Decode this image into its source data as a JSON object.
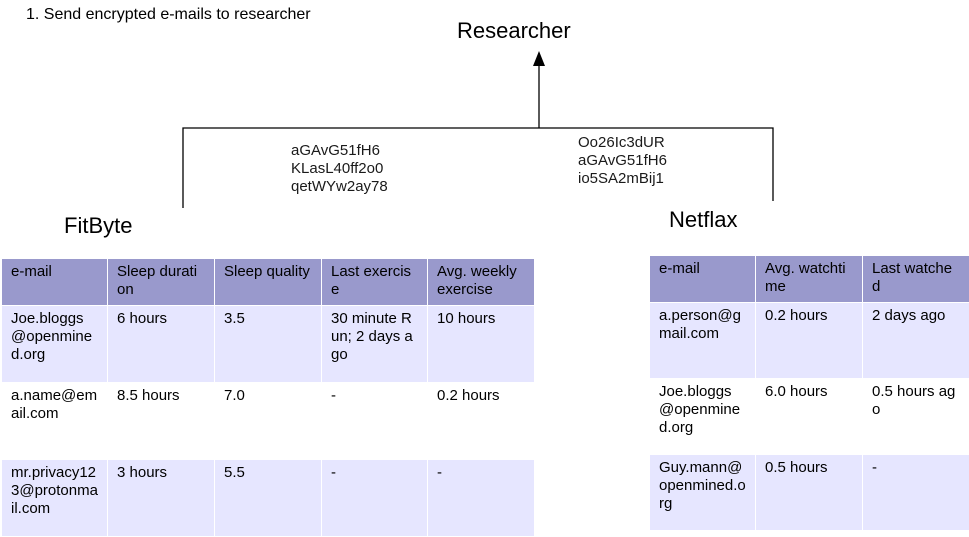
{
  "instruction": "1.  Send encrypted e-mails to researcher",
  "researcher": "Researcher",
  "fitbyte": {
    "title": "FitByte",
    "codes": [
      "aGAvG51fH6",
      "KLasL40ff2o0",
      "qetWYw2ay78"
    ],
    "headers": [
      "e-mail",
      "Sleep duration",
      "Sleep quality",
      "Last exercise",
      "Avg. weekly exercise"
    ],
    "rows": [
      [
        "Joe.bloggs@openmined.org",
        "6 hours",
        "3.5",
        "30 minute Run; 2 days ago",
        "10 hours"
      ],
      [
        "a.name@email.com",
        "8.5 hours",
        "7.0",
        "-",
        "0.2 hours"
      ],
      [
        "mr.privacy123@protonmail.com",
        "3 hours",
        "5.5",
        "-",
        "-"
      ]
    ]
  },
  "netflax": {
    "title": "Netflax",
    "codes": [
      "Oo26Ic3dUR",
      "aGAvG51fH6",
      "io5SA2mBij1"
    ],
    "headers": [
      "e-mail",
      "Avg. watchtime",
      "Last watched"
    ],
    "rows": [
      [
        "a.person@gmail.com",
        "0.2 hours",
        "2 days ago"
      ],
      [
        "Joe.bloggs@openmined.org",
        "6.0 hours",
        "0.5 hours ago"
      ],
      [
        "Guy.mann@openmined.org",
        "0.5 hours",
        "-"
      ]
    ]
  }
}
